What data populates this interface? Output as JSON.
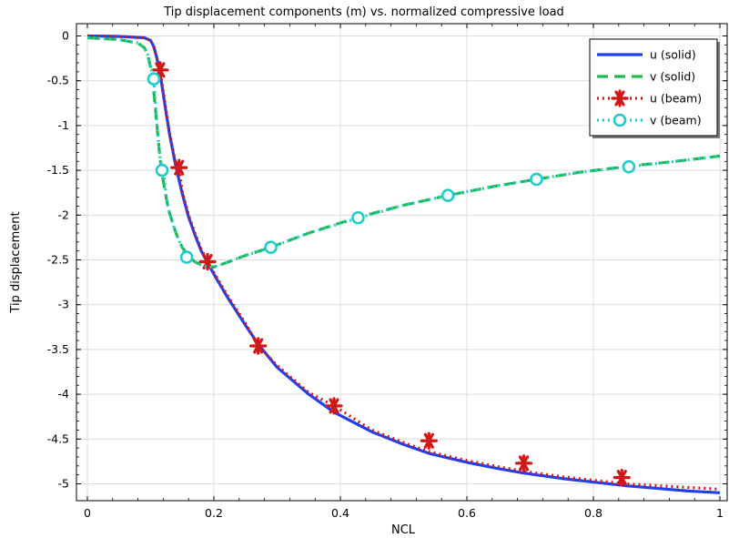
{
  "chart_data": {
    "type": "line",
    "title": "Tip displacement components (m) vs. normalized compressive load",
    "xlabel": "NCL",
    "ylabel": "Tip displacement",
    "xlim": [
      0,
      1
    ],
    "ylim": [
      -5.1,
      0.1
    ],
    "x_ticks": [
      0,
      0.2,
      0.4,
      0.6,
      0.8,
      1
    ],
    "x_tick_labels": [
      "0",
      "0.2",
      "0.4",
      "0.6",
      "0.8",
      "1"
    ],
    "y_ticks": [
      0,
      -0.5,
      -1,
      -1.5,
      -2,
      -2.5,
      -3,
      -3.5,
      -4,
      -4.5,
      -5
    ],
    "y_tick_labels": [
      "0",
      "-0.5",
      "-1",
      "-1.5",
      "-2",
      "-2.5",
      "-3",
      "-3.5",
      "-4",
      "-4.5",
      "-5"
    ],
    "grid": true,
    "legend_position": "top-right",
    "series": [
      {
        "name": "u (solid)",
        "color": "#1f3ff0",
        "style": "solid",
        "marker": "none",
        "x": [
          0,
          0.05,
          0.09,
          0.1,
          0.105,
          0.11,
          0.115,
          0.12,
          0.125,
          0.13,
          0.14,
          0.15,
          0.16,
          0.17,
          0.18,
          0.19,
          0.2,
          0.22,
          0.25,
          0.27,
          0.3,
          0.35,
          0.39,
          0.45,
          0.5,
          0.54,
          0.6,
          0.65,
          0.69,
          0.75,
          0.8,
          0.85,
          0.9,
          0.95,
          1.0
        ],
        "y": [
          0,
          -0.005,
          -0.02,
          -0.05,
          -0.12,
          -0.25,
          -0.42,
          -0.65,
          -0.88,
          -1.1,
          -1.46,
          -1.76,
          -2.02,
          -2.22,
          -2.4,
          -2.53,
          -2.66,
          -2.9,
          -3.23,
          -3.44,
          -3.7,
          -4.0,
          -4.2,
          -4.42,
          -4.56,
          -4.66,
          -4.76,
          -4.83,
          -4.88,
          -4.94,
          -4.98,
          -5.02,
          -5.05,
          -5.08,
          -5.1
        ]
      },
      {
        "name": "v (solid)",
        "color": "#22b84a",
        "style": "dashed",
        "marker": "none",
        "x": [
          0,
          0.05,
          0.08,
          0.09,
          0.095,
          0.1,
          0.105,
          0.11,
          0.115,
          0.12,
          0.125,
          0.13,
          0.14,
          0.15,
          0.16,
          0.17,
          0.18,
          0.19,
          0.2,
          0.22,
          0.25,
          0.29,
          0.35,
          0.43,
          0.5,
          0.57,
          0.65,
          0.71,
          0.78,
          0.86,
          0.93,
          1.0
        ],
        "y": [
          -0.02,
          -0.04,
          -0.08,
          -0.13,
          -0.2,
          -0.35,
          -0.62,
          -1.0,
          -1.38,
          -1.62,
          -1.82,
          -1.98,
          -2.2,
          -2.36,
          -2.46,
          -2.52,
          -2.56,
          -2.58,
          -2.58,
          -2.53,
          -2.45,
          -2.36,
          -2.2,
          -2.02,
          -1.89,
          -1.78,
          -1.67,
          -1.6,
          -1.52,
          -1.45,
          -1.4,
          -1.34
        ]
      },
      {
        "name": "u (beam)",
        "color": "#d01818",
        "style": "dotted",
        "marker": "asterisk",
        "x": [
          0,
          0.05,
          0.09,
          0.1,
          0.105,
          0.11,
          0.115,
          0.12,
          0.125,
          0.13,
          0.14,
          0.145,
          0.15,
          0.16,
          0.17,
          0.18,
          0.19,
          0.2,
          0.22,
          0.25,
          0.27,
          0.3,
          0.35,
          0.39,
          0.45,
          0.5,
          0.54,
          0.6,
          0.65,
          0.69,
          0.75,
          0.8,
          0.85,
          0.9,
          0.95,
          1.0
        ],
        "y": [
          0,
          -0.005,
          -0.02,
          -0.05,
          -0.12,
          -0.25,
          -0.39,
          -0.62,
          -0.86,
          -1.08,
          -1.44,
          -1.47,
          -1.74,
          -2.0,
          -2.2,
          -2.38,
          -2.52,
          -2.64,
          -2.88,
          -3.21,
          -3.46,
          -3.68,
          -3.98,
          -4.13,
          -4.4,
          -4.54,
          -4.64,
          -4.74,
          -4.81,
          -4.86,
          -4.92,
          -4.96,
          -5.0,
          -5.02,
          -5.04,
          -5.06
        ],
        "marker_x": [
          0.115,
          0.145,
          0.19,
          0.27,
          0.39,
          0.54,
          0.69,
          0.845
        ],
        "marker_y": [
          -0.38,
          -1.47,
          -2.52,
          -3.46,
          -4.13,
          -4.52,
          -4.77,
          -4.93
        ]
      },
      {
        "name": "v (beam)",
        "color": "#22cccc",
        "style": "dotted",
        "marker": "circle",
        "x": [
          0,
          0.05,
          0.08,
          0.09,
          0.095,
          0.1,
          0.105,
          0.11,
          0.115,
          0.12,
          0.125,
          0.13,
          0.14,
          0.155,
          0.16,
          0.17,
          0.18,
          0.19,
          0.2,
          0.22,
          0.25,
          0.29,
          0.35,
          0.43,
          0.5,
          0.57,
          0.65,
          0.71,
          0.78,
          0.855,
          0.93,
          1.0
        ],
        "y": [
          -0.02,
          -0.04,
          -0.08,
          -0.13,
          -0.2,
          -0.35,
          -0.48,
          -1.0,
          -1.38,
          -1.5,
          -1.82,
          -1.98,
          -2.2,
          -2.46,
          -2.47,
          -2.52,
          -2.56,
          -2.58,
          -2.58,
          -2.53,
          -2.45,
          -2.36,
          -2.2,
          -2.03,
          -1.89,
          -1.78,
          -1.67,
          -1.6,
          -1.52,
          -1.46,
          -1.4,
          -1.34
        ],
        "marker_x": [
          0.105,
          0.118,
          0.157,
          0.29,
          0.428,
          0.57,
          0.71,
          0.856
        ],
        "marker_y": [
          -0.48,
          -1.5,
          -2.47,
          -2.36,
          -2.03,
          -1.78,
          -1.6,
          -1.46
        ]
      }
    ]
  }
}
